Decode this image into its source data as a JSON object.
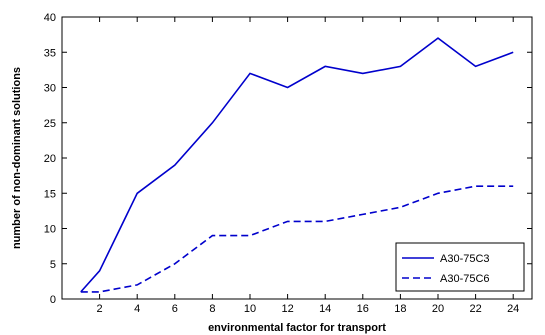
{
  "chart_data": {
    "type": "line",
    "title": "",
    "xlabel": "environmental factor for transport",
    "ylabel": "number of non-dominant solutions",
    "xlim": [
      0,
      25
    ],
    "ylim": [
      0,
      40
    ],
    "xticks": [
      2,
      4,
      6,
      8,
      10,
      12,
      14,
      16,
      18,
      20,
      22,
      24
    ],
    "yticks": [
      0,
      5,
      10,
      15,
      20,
      25,
      30,
      35,
      40
    ],
    "grid": false,
    "legend_position": "bottom-right",
    "series": [
      {
        "name": "A30-75C3",
        "style": "solid",
        "color": "#0000cc",
        "x": [
          1,
          2,
          4,
          6,
          8,
          10,
          12,
          14,
          16,
          18,
          20,
          22,
          24
        ],
        "values": [
          1,
          4,
          15,
          19,
          25,
          32,
          30,
          33,
          32,
          33,
          37,
          33,
          35
        ]
      },
      {
        "name": "A30-75C6",
        "style": "dashed",
        "color": "#0000cc",
        "x": [
          1,
          2,
          4,
          6,
          8,
          10,
          12,
          14,
          16,
          18,
          20,
          22,
          24
        ],
        "values": [
          1,
          1,
          2,
          5,
          9,
          9,
          11,
          11,
          12,
          13,
          15,
          16,
          16
        ]
      }
    ]
  }
}
